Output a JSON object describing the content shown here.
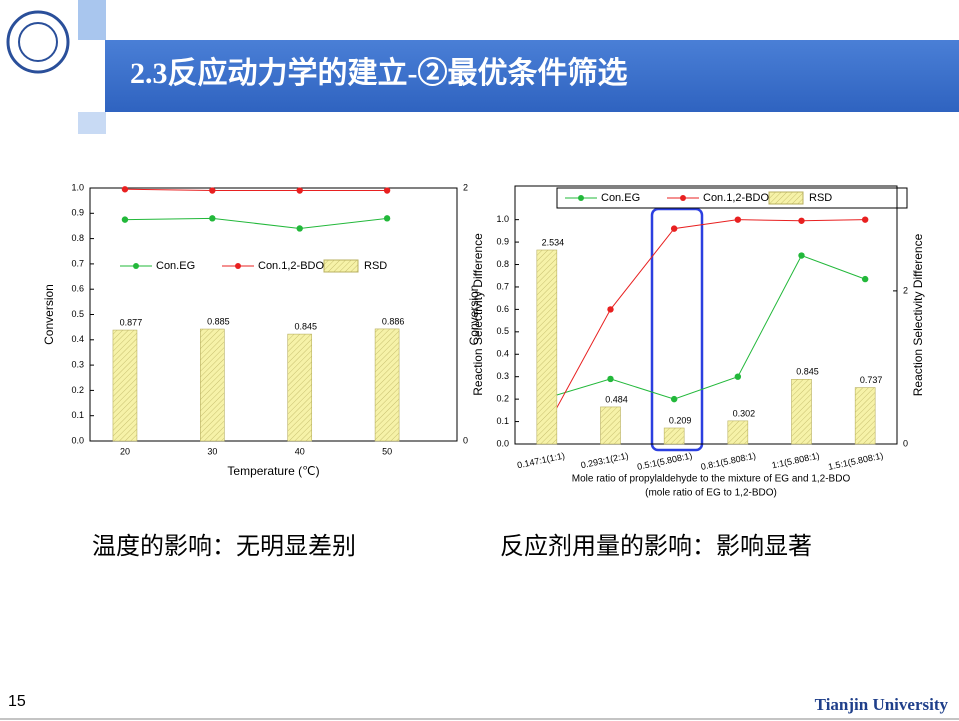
{
  "slide": {
    "title": "2.3反应动力学的建立-②最优条件筛选",
    "captions": [
      "温度的影响：无明显差别",
      "反应剂用量的影响：影响显著"
    ],
    "page": "15",
    "footer": "Tianjin University"
  },
  "chart_data": [
    {
      "type": "combo",
      "x": [
        20,
        30,
        40,
        50
      ],
      "xlim": [
        16,
        58
      ],
      "xticks": [
        20,
        30,
        40,
        50
      ],
      "x_label": "Temperature (℃)",
      "y_label": "Conversion",
      "y2_label": "Reaction Selectivity Difference",
      "ylim": [
        0,
        1
      ],
      "yticks": [
        {
          "value": 0,
          "label": "0.0"
        },
        {
          "value": 0.1,
          "label": "0.1"
        },
        {
          "value": 0.2,
          "label": "0.2"
        },
        {
          "value": 0.3,
          "label": "0.3"
        },
        {
          "value": 0.4,
          "label": "0.4"
        },
        {
          "value": 0.5,
          "label": "0.5"
        },
        {
          "value": 0.6,
          "label": "0.6"
        },
        {
          "value": 0.7,
          "label": "0.7"
        },
        {
          "value": 0.8,
          "label": "0.8"
        },
        {
          "value": 0.9,
          "label": "0.9"
        },
        {
          "value": 1,
          "label": "1.0"
        }
      ],
      "y2lim": [
        0,
        2
      ],
      "y2ticks": [
        0,
        2
      ],
      "legend": "center",
      "series": [
        {
          "name": "Con.EG",
          "type": "line",
          "color": "#22b83a",
          "values": [
            0.875,
            0.88,
            0.84,
            0.88
          ]
        },
        {
          "name": "Con.1,2-BDO",
          "type": "line",
          "color": "#e82020",
          "values": [
            0.995,
            0.99,
            0.99,
            0.99
          ]
        },
        {
          "name": "RSD",
          "type": "bar",
          "axis": "y2",
          "color": "#f6f2a8",
          "values": [
            0.877,
            0.885,
            0.845,
            0.886
          ]
        }
      ]
    },
    {
      "type": "combo",
      "categories": [
        "0.147:1(1:1)",
        "0.293:1(2:1)",
        "0.5:1(5.808:1)",
        "0.8:1(5.808:1)",
        "1:1(5.808:1)",
        "1.5:1(5.808:1)"
      ],
      "x_label": [
        "Mole ratio of propylaldehyde to the mixture of EG and 1,2-BDO",
        "(mole ratio of EG to 1,2-BDO)"
      ],
      "y_label": "Conversion",
      "y2_label": "Reaction Selectivity Difference",
      "ylim": [
        0,
        1.15
      ],
      "yticks": [
        {
          "value": 0,
          "label": "0.0"
        },
        {
          "value": 0.1,
          "label": "0.1"
        },
        {
          "value": 0.2,
          "label": "0.2"
        },
        {
          "value": 0.3,
          "label": "0.3"
        },
        {
          "value": 0.4,
          "label": "0.4"
        },
        {
          "value": 0.5,
          "label": "0.5"
        },
        {
          "value": 0.6,
          "label": "0.6"
        },
        {
          "value": 0.7,
          "label": "0.7"
        },
        {
          "value": 0.8,
          "label": "0.8"
        },
        {
          "value": 0.9,
          "label": "0.9"
        },
        {
          "value": 1,
          "label": "1.0"
        }
      ],
      "y2lim": [
        0,
        3.37
      ],
      "y2ticks": [
        0,
        2
      ],
      "legend": "upper right",
      "series": [
        {
          "name": "Con.EG",
          "type": "line",
          "color": "#22b83a",
          "values": [
            0.205,
            0.29,
            0.2,
            0.3,
            0.84,
            0.735
          ]
        },
        {
          "name": "Con.1,2-BDO",
          "type": "line",
          "color": "#e82020",
          "values": [
            0.08,
            0.6,
            0.96,
            1.0,
            0.995,
            1.0
          ]
        },
        {
          "name": "RSD",
          "type": "bar",
          "axis": "y2",
          "color": "#f6f2a8",
          "values": [
            2.534,
            0.484,
            0.209,
            0.302,
            0.845,
            0.737
          ]
        }
      ]
    }
  ]
}
